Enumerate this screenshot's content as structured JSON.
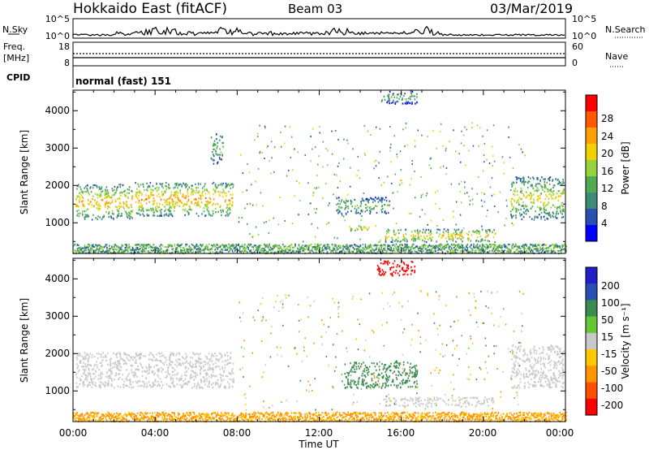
{
  "header": {
    "radar_title": "Hokkaido East (fitACF)",
    "beam": "Beam 03",
    "date": "03/Mar/2019"
  },
  "noise_panel": {
    "left_label": "N.Sky",
    "right_label": "N.Search",
    "left_ticks": [
      "10^5",
      "10^0"
    ],
    "right_ticks": [
      "10^5",
      "10^0"
    ]
  },
  "freq_panel": {
    "left_label_1": "Freq.",
    "left_label_2": "[MHz]",
    "left_ticks": [
      "18",
      "8"
    ],
    "right_label": "Nave",
    "right_ticks": [
      "60",
      "0"
    ]
  },
  "cpid_panel": {
    "label": "CPID",
    "value": "normal (fast) 151"
  },
  "x_axis": {
    "title": "Time UT",
    "ticks": [
      "00:00",
      "04:00",
      "08:00",
      "12:00",
      "16:00",
      "20:00",
      "00:00"
    ]
  },
  "power_panel": {
    "ylabel": "Slant Range [km]",
    "yticks": [
      "4000",
      "3000",
      "2000",
      "1000"
    ],
    "colorbar_label": "Power [dB]",
    "colorbar_ticks": [
      "28",
      "24",
      "20",
      "16",
      "12",
      "8",
      "4"
    ],
    "colors": [
      "#0000ff",
      "#2850b4",
      "#3c8c78",
      "#50aa50",
      "#96d23c",
      "#f0d200",
      "#ffa000",
      "#ff5a00",
      "#ff0000"
    ]
  },
  "velocity_panel": {
    "ylabel": "Slant Range [km]",
    "yticks": [
      "4000",
      "3000",
      "2000",
      "1000"
    ],
    "colorbar_label": "Velocity [m s⁻¹]",
    "colorbar_ticks": [
      "200",
      "100",
      "50",
      "15",
      "-15",
      "-50",
      "-100",
      "-200"
    ],
    "colors": [
      "#2020c8",
      "#2850b4",
      "#3c8c50",
      "#64c832",
      "#c8c8c8",
      "#ffc800",
      "#ff9600",
      "#ff5000",
      "#ff0000"
    ]
  },
  "chart_data": {
    "type": "heatmap",
    "x_range_hours": [
      0,
      24
    ],
    "y_range_km": [
      180,
      4550
    ],
    "power_regions": [
      {
        "t0": 0.1,
        "t1": 2.9,
        "r0": 1100,
        "r1": 2050,
        "core_db": 26
      },
      {
        "t0": 3.0,
        "t1": 7.8,
        "r0": 1200,
        "r1": 2100,
        "core_db": 27
      },
      {
        "t0": 6.7,
        "t1": 7.3,
        "r0": 2600,
        "r1": 3400,
        "core_db": 16
      },
      {
        "t0": 12.8,
        "t1": 15.4,
        "r0": 1250,
        "r1": 1700,
        "core_db": 16
      },
      {
        "t0": 13.4,
        "t1": 14.4,
        "r0": 800,
        "r1": 950,
        "core_db": 24
      },
      {
        "t0": 15.2,
        "t1": 20.6,
        "r0": 500,
        "r1": 850,
        "core_db": 26
      },
      {
        "t0": 21.3,
        "t1": 23.9,
        "r0": 1100,
        "r1": 2250,
        "core_db": 22
      },
      {
        "t0": 15.0,
        "t1": 16.8,
        "r0": 4200,
        "r1": 4550,
        "core_db": 14
      }
    ],
    "velocity_regions": [
      {
        "t0": 0.1,
        "t1": 7.8,
        "r0": 1100,
        "r1": 2050,
        "vel": 0
      },
      {
        "t0": 13.2,
        "t1": 16.8,
        "r0": 1100,
        "r1": 1800,
        "vel": 60
      },
      {
        "t0": 15.2,
        "t1": 20.6,
        "r0": 600,
        "r1": 850,
        "vel": 0
      },
      {
        "t0": 21.3,
        "t1": 23.9,
        "r0": 1100,
        "r1": 2250,
        "vel": 0
      },
      {
        "t0": 14.8,
        "t1": 16.7,
        "r0": 4100,
        "r1": 4500,
        "vel": -220
      }
    ]
  }
}
